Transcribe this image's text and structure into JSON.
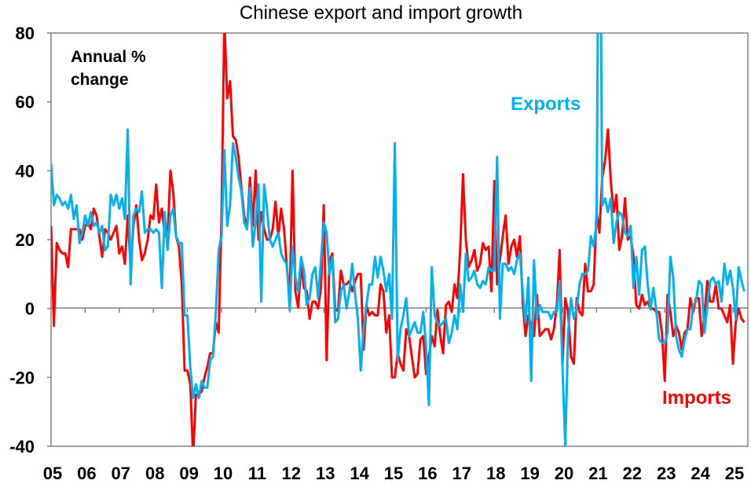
{
  "chart_data": {
    "type": "line",
    "title": "Chinese export and import growth",
    "annotation_lines": [
      "Annual %",
      "change"
    ],
    "xlabel": "",
    "ylabel": "Annual % change",
    "ylim": [
      -40,
      80
    ],
    "yticks": [
      -40,
      -20,
      0,
      20,
      40,
      60,
      80
    ],
    "ytick_labels": [
      "-40",
      "-20",
      "0",
      "20",
      "40",
      "60",
      "80"
    ],
    "xtick_labels": [
      "05",
      "06",
      "07",
      "08",
      "09",
      "10",
      "11",
      "12",
      "13",
      "14",
      "15",
      "16",
      "17",
      "18",
      "19",
      "20",
      "21",
      "22",
      "23",
      "24",
      "25"
    ],
    "x_start": "2005-01",
    "frequency": "monthly",
    "grid": false,
    "legend": "inline labels",
    "series": [
      {
        "name": "Exports",
        "color": "#00B0F0",
        "values": [
          42,
          30,
          33,
          32,
          30,
          31,
          29,
          33,
          26,
          30,
          19,
          22,
          27,
          24,
          28,
          24,
          25,
          22,
          24,
          17,
          18,
          33,
          30,
          33,
          29,
          32,
          26,
          52,
          7,
          27,
          29,
          28,
          34,
          22,
          23,
          23,
          22,
          23,
          22,
          6,
          28,
          17,
          27,
          29,
          21,
          19,
          19,
          -2,
          -2,
          -17,
          -26,
          -22,
          -26,
          -21,
          -23,
          -23,
          -15,
          -14,
          -1,
          17,
          21,
          46,
          24,
          30,
          48,
          44,
          38,
          34,
          25,
          23,
          35,
          18,
          25,
          36,
          2,
          36,
          29,
          20,
          18,
          20,
          22,
          16,
          14,
          13,
          -0.5,
          18,
          9,
          5,
          15,
          11,
          1,
          3,
          10,
          12,
          3,
          14,
          25,
          22,
          10,
          15,
          -4,
          -3,
          5,
          7,
          0,
          5,
          13,
          4,
          -3,
          -18,
          -6,
          1,
          7,
          7,
          15,
          9,
          15,
          11,
          5,
          10,
          -3,
          48,
          -15,
          -6,
          -2,
          3,
          -8,
          -6,
          -4,
          -7,
          -7,
          -1,
          -11,
          -28,
          12,
          -2,
          -4,
          -5,
          -4,
          -3,
          -10,
          -7,
          -2,
          -6,
          7,
          -1,
          16,
          8,
          9,
          11,
          7,
          6,
          8,
          7,
          12,
          11,
          11,
          44,
          -3,
          13,
          13,
          11,
          12,
          10,
          14,
          16,
          5,
          -4,
          9,
          -21,
          14,
          -3,
          1,
          -1,
          -1,
          -1,
          -3,
          -1,
          -1,
          8,
          -17,
          -40,
          -7,
          3,
          -3,
          0,
          7,
          10,
          10,
          11,
          21,
          18,
          25,
          155,
          30,
          32,
          28,
          32,
          19,
          25,
          28,
          27,
          22,
          21,
          24,
          6,
          15,
          4,
          17,
          18,
          7,
          -0.3,
          6,
          -0.5,
          -9,
          -10,
          -10,
          -7,
          15,
          9,
          -8,
          -12,
          -14,
          -9,
          -6,
          -6,
          1,
          2,
          8,
          7,
          -7,
          1,
          8,
          9,
          7,
          8,
          2,
          13,
          7,
          11,
          6,
          -3,
          12,
          8,
          5
        ]
      },
      {
        "name": "Imports",
        "color": "#FF0000",
        "values": [
          24,
          -5,
          19,
          17,
          16,
          16,
          12,
          23,
          23,
          23,
          23,
          20,
          24,
          25,
          23,
          29,
          27,
          21,
          15,
          23,
          22,
          20,
          22,
          24,
          16,
          18,
          13,
          27,
          12,
          24,
          30,
          20,
          14,
          16,
          20,
          27,
          26,
          36,
          25,
          29,
          22,
          20,
          40,
          34,
          21,
          18,
          7,
          -18,
          -18,
          -22,
          -43,
          -25,
          -25,
          -24,
          -20,
          -17,
          -13,
          -13,
          -4,
          -7,
          27,
          84,
          61,
          66,
          50,
          49,
          44,
          35,
          27,
          23,
          38,
          24,
          40,
          20,
          28,
          23,
          20,
          20,
          23,
          31,
          21,
          29,
          23,
          12,
          3,
          40,
          5,
          0.3,
          13,
          6,
          5,
          -3,
          2,
          2,
          0,
          6,
          30,
          -15,
          14,
          16,
          -0.3,
          -0.7,
          11,
          7,
          7,
          8,
          5,
          8,
          10,
          10,
          -12,
          1,
          -2,
          -1,
          -2,
          -2,
          7,
          5,
          -7,
          -2,
          -20,
          -20,
          -13,
          -16,
          -18,
          -6,
          -8,
          -14,
          -20,
          -19,
          -9,
          -8,
          -19,
          -14,
          -8,
          -11,
          -0.4,
          -8,
          -13,
          1,
          2,
          -1,
          7,
          3,
          17,
          39,
          20,
          12,
          14,
          17,
          11,
          13,
          19,
          17,
          18,
          5,
          37,
          7,
          14,
          21,
          27,
          13,
          18,
          20,
          15,
          21,
          2,
          -8,
          -2,
          -5,
          -8,
          4,
          -8,
          -7,
          -6,
          -6,
          -9,
          -6,
          1,
          17,
          -16,
          3,
          -1,
          -14,
          -16,
          3,
          -1,
          -2,
          13,
          5,
          5,
          7,
          28,
          22,
          38,
          43,
          52,
          37,
          28,
          33,
          17,
          21,
          32,
          20,
          21,
          15,
          1,
          0,
          4,
          1,
          2,
          0,
          0,
          -1,
          -1,
          -7,
          -21,
          4,
          -1,
          -8,
          -5,
          -7,
          -12,
          -7,
          -6,
          3,
          -1,
          3,
          3,
          -8,
          -2,
          8,
          2,
          2,
          7,
          0,
          0,
          -2,
          -4,
          1,
          -16,
          -4,
          0,
          -3,
          -4
        ]
      }
    ]
  }
}
